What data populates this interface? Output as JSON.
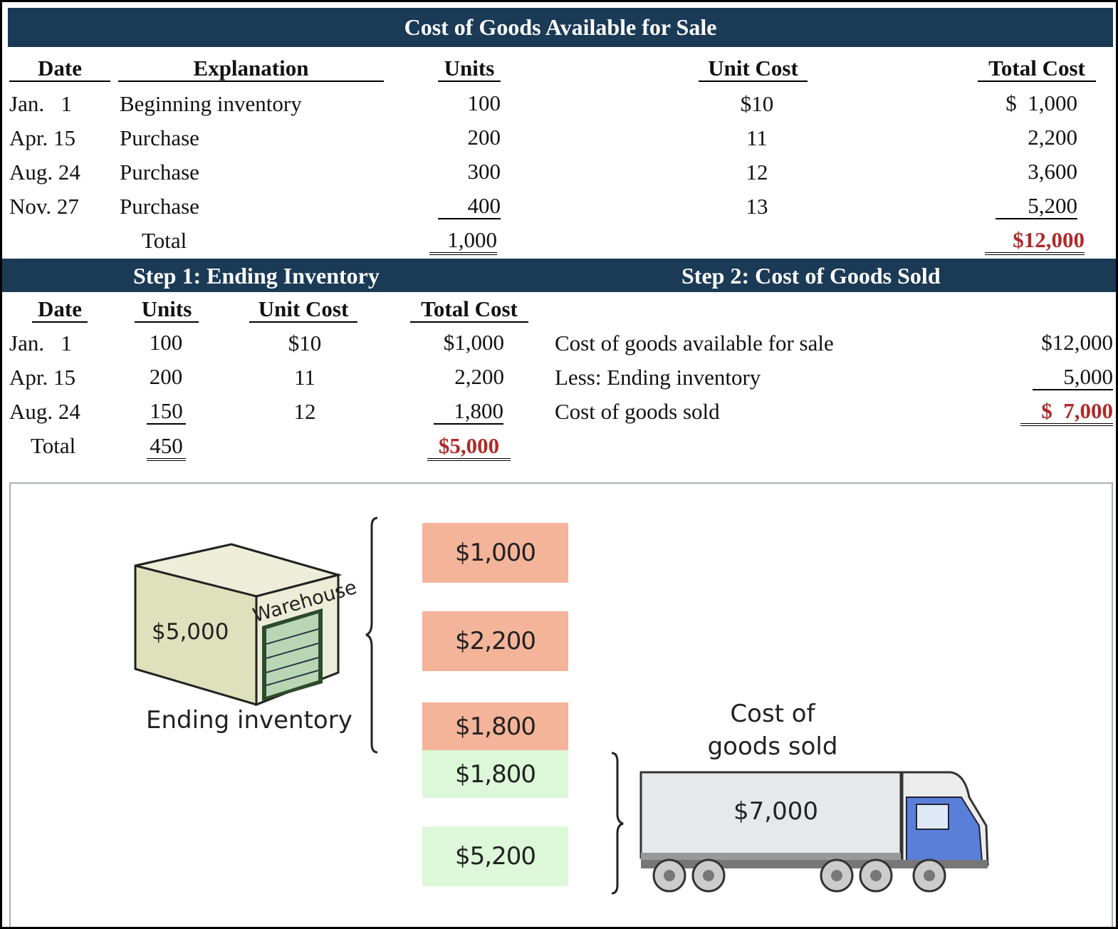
{
  "top": {
    "title": "Cost of Goods Available for Sale",
    "headers": {
      "date": "Date",
      "explanation": "Explanation",
      "units": "Units",
      "unit_cost": "Unit Cost",
      "total_cost": "Total Cost"
    },
    "rows": [
      {
        "date": "Jan.   1",
        "explanation": "Beginning inventory",
        "units": "100",
        "unit_cost": "$10",
        "total_cost": "$  1,000"
      },
      {
        "date": "Apr. 15",
        "explanation": "Purchase",
        "units": "200",
        "unit_cost": "11",
        "total_cost": "2,200"
      },
      {
        "date": "Aug. 24",
        "explanation": "Purchase",
        "units": "300",
        "unit_cost": "12",
        "total_cost": "3,600"
      },
      {
        "date": "Nov. 27",
        "explanation": "Purchase",
        "units": "400",
        "unit_cost": "13",
        "total_cost": "5,200"
      }
    ],
    "total_label": "Total",
    "total_units": "1,000",
    "total_cost": "$12,000"
  },
  "step1": {
    "title": "Step 1: Ending Inventory",
    "headers": {
      "date": "Date",
      "units": "Units",
      "unit_cost": "Unit Cost",
      "total_cost": "Total Cost"
    },
    "rows": [
      {
        "date": "Jan.   1",
        "units": "100",
        "unit_cost": "$10",
        "total_cost": "$1,000"
      },
      {
        "date": "Apr. 15",
        "units": "200",
        "unit_cost": "11",
        "total_cost": "2,200"
      },
      {
        "date": "Aug. 24",
        "units": "150",
        "unit_cost": "12",
        "total_cost": "1,800"
      }
    ],
    "total_label": "Total",
    "total_units": "450",
    "total_cost": "$5,000"
  },
  "step2": {
    "title": "Step 2: Cost of Goods Sold",
    "rows": [
      {
        "label": "Cost of goods available for sale",
        "value": "$12,000"
      },
      {
        "label": "Less: Ending inventory",
        "value": "5,000"
      },
      {
        "label": "Cost of goods sold",
        "value": "$  7,000"
      }
    ]
  },
  "diagram": {
    "warehouse_sign": "Warehouse",
    "warehouse_value": "$5,000",
    "warehouse_caption": "Ending inventory",
    "boxes": [
      {
        "value": "$1,000",
        "color": "#f4b49a"
      },
      {
        "value": "$2,200",
        "color": "#f4b49a"
      },
      {
        "value": "$1,800",
        "color": "#f4b49a"
      },
      {
        "value": "$1,800",
        "color": "#dcf8d8"
      },
      {
        "value": "$5,200",
        "color": "#dcf8d8"
      }
    ],
    "cogs_caption_line1": "Cost of",
    "cogs_caption_line2": "goods sold",
    "truck_value": "$7,000"
  },
  "colors": {
    "header_bar": "#1a3a56",
    "highlight_red": "#b02a2a"
  }
}
